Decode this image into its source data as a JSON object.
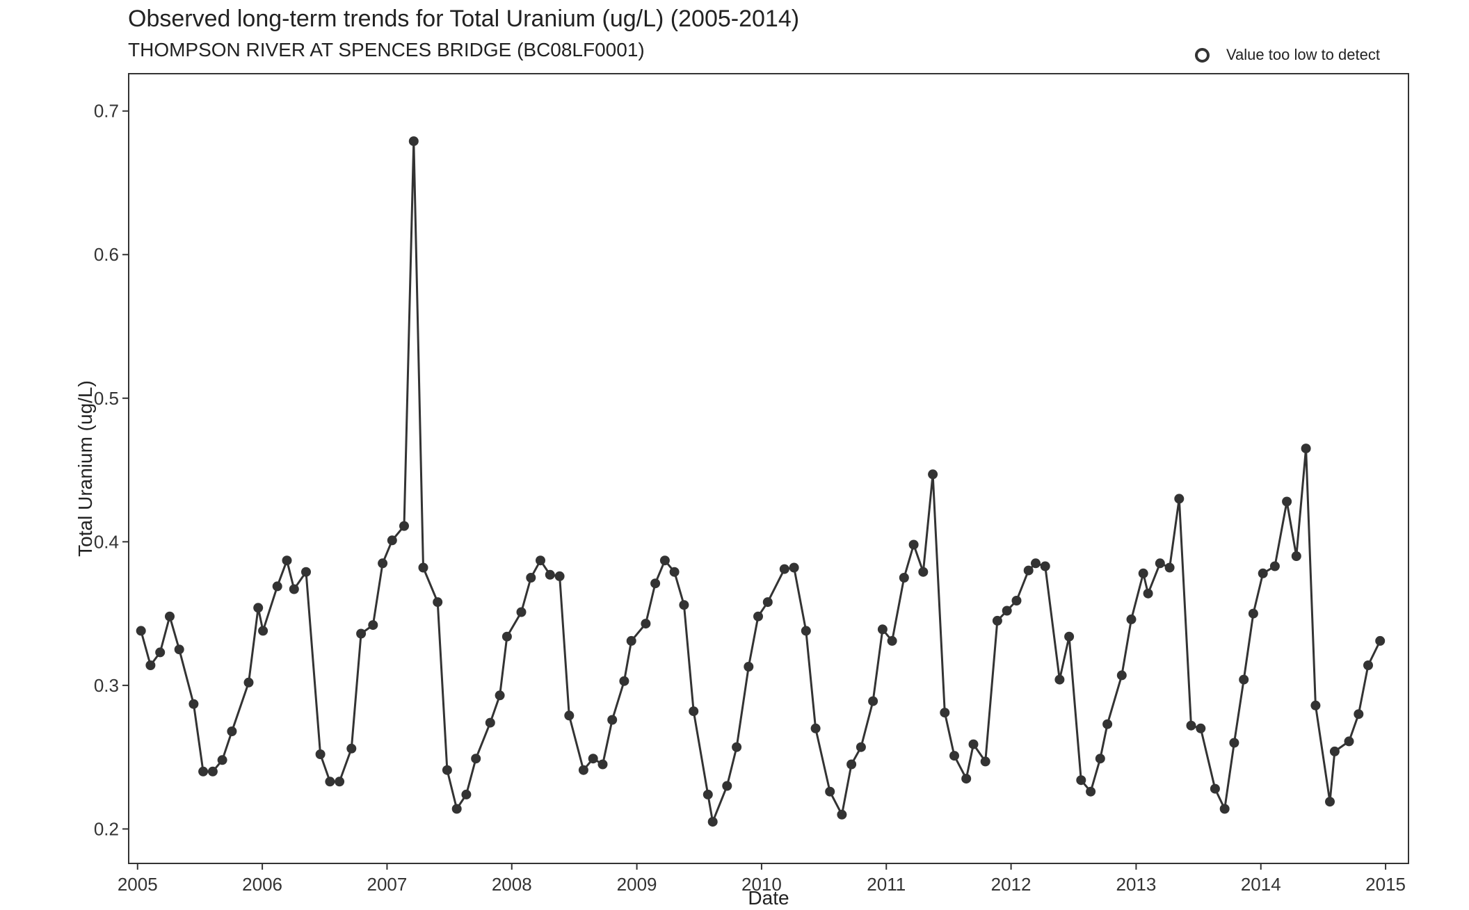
{
  "title": "Observed long-term trends for Total Uranium (ug/L) (2005-2014)",
  "subtitle": "THOMPSON RIVER AT SPENCES BRIDGE (BC08LF0001)",
  "legend": {
    "label": "Value too low to detect",
    "marker": "open-circle"
  },
  "colors": {
    "line": "#333333",
    "point": "#333333",
    "axis": "#333333"
  },
  "chart_data": {
    "type": "line",
    "title": "Observed long-term trends for Total Uranium (ug/L) (2005-2014)",
    "subtitle": "THOMPSON RIVER AT SPENCES BRIDGE (BC08LF0001)",
    "xlabel": "Date",
    "ylabel": "Total Uranium (ug/L)",
    "xlim": [
      "2004-12-06",
      "2015-03-09"
    ],
    "ylim": [
      0.176,
      0.726
    ],
    "x_ticks": [
      "2005",
      "2006",
      "2007",
      "2008",
      "2009",
      "2010",
      "2011",
      "2012",
      "2013",
      "2014",
      "2015"
    ],
    "y_ticks": [
      "0.2",
      "0.3",
      "0.4",
      "0.5",
      "0.6",
      "0.7"
    ],
    "grid": false,
    "legend_position": "top-right",
    "series": [
      {
        "points": [
          [
            "2005-01-11",
            0.338
          ],
          [
            "2005-02-08",
            0.314
          ],
          [
            "2005-03-08",
            0.323
          ],
          [
            "2005-04-05",
            0.348
          ],
          [
            "2005-05-03",
            0.325
          ],
          [
            "2005-06-14",
            0.287
          ],
          [
            "2005-07-12",
            0.24
          ],
          [
            "2005-08-09",
            0.24
          ],
          [
            "2005-09-06",
            0.248
          ],
          [
            "2005-10-04",
            0.268
          ],
          [
            "2005-11-22",
            0.302
          ],
          [
            "2005-12-20",
            0.354
          ],
          [
            "2006-01-03",
            0.338
          ],
          [
            "2006-02-14",
            0.369
          ],
          [
            "2006-03-14",
            0.387
          ],
          [
            "2006-04-04",
            0.367
          ],
          [
            "2006-05-09",
            0.379
          ],
          [
            "2006-06-20",
            0.252
          ],
          [
            "2006-07-18",
            0.233
          ],
          [
            "2006-08-15",
            0.233
          ],
          [
            "2006-09-19",
            0.256
          ],
          [
            "2006-10-17",
            0.336
          ],
          [
            "2006-11-21",
            0.342
          ],
          [
            "2006-12-19",
            0.385
          ],
          [
            "2007-01-16",
            0.401
          ],
          [
            "2007-02-20",
            0.411
          ],
          [
            "2007-03-20",
            0.679
          ],
          [
            "2007-04-17",
            0.382
          ],
          [
            "2007-05-29",
            0.358
          ],
          [
            "2007-06-26",
            0.241
          ],
          [
            "2007-07-24",
            0.214
          ],
          [
            "2007-08-21",
            0.224
          ],
          [
            "2007-09-18",
            0.249
          ],
          [
            "2007-10-30",
            0.274
          ],
          [
            "2007-11-27",
            0.293
          ],
          [
            "2007-12-18",
            0.334
          ],
          [
            "2008-01-29",
            0.351
          ],
          [
            "2008-02-26",
            0.375
          ],
          [
            "2008-03-25",
            0.387
          ],
          [
            "2008-04-22",
            0.377
          ],
          [
            "2008-05-20",
            0.376
          ],
          [
            "2008-06-17",
            0.279
          ],
          [
            "2008-07-29",
            0.241
          ],
          [
            "2008-08-26",
            0.249
          ],
          [
            "2008-09-23",
            0.245
          ],
          [
            "2008-10-21",
            0.276
          ],
          [
            "2008-11-25",
            0.303
          ],
          [
            "2008-12-16",
            0.331
          ],
          [
            "2009-01-27",
            0.343
          ],
          [
            "2009-02-24",
            0.371
          ],
          [
            "2009-03-24",
            0.387
          ],
          [
            "2009-04-21",
            0.379
          ],
          [
            "2009-05-19",
            0.356
          ],
          [
            "2009-06-16",
            0.282
          ],
          [
            "2009-07-28",
            0.224
          ],
          [
            "2009-08-11",
            0.205
          ],
          [
            "2009-09-22",
            0.23
          ],
          [
            "2009-10-20",
            0.257
          ],
          [
            "2009-11-24",
            0.313
          ],
          [
            "2009-12-22",
            0.348
          ],
          [
            "2010-01-19",
            0.358
          ],
          [
            "2010-03-09",
            0.381
          ],
          [
            "2010-04-06",
            0.382
          ],
          [
            "2010-05-11",
            0.338
          ],
          [
            "2010-06-08",
            0.27
          ],
          [
            "2010-07-20",
            0.226
          ],
          [
            "2010-08-24",
            0.21
          ],
          [
            "2010-09-21",
            0.245
          ],
          [
            "2010-10-19",
            0.257
          ],
          [
            "2010-11-23",
            0.289
          ],
          [
            "2010-12-21",
            0.339
          ],
          [
            "2011-01-18",
            0.331
          ],
          [
            "2011-02-22",
            0.375
          ],
          [
            "2011-03-22",
            0.398
          ],
          [
            "2011-04-19",
            0.379
          ],
          [
            "2011-05-17",
            0.447
          ],
          [
            "2011-06-21",
            0.281
          ],
          [
            "2011-07-19",
            0.251
          ],
          [
            "2011-08-23",
            0.235
          ],
          [
            "2011-09-13",
            0.259
          ],
          [
            "2011-10-18",
            0.247
          ],
          [
            "2011-11-22",
            0.345
          ],
          [
            "2011-12-20",
            0.352
          ],
          [
            "2012-01-17",
            0.359
          ],
          [
            "2012-02-21",
            0.38
          ],
          [
            "2012-03-13",
            0.385
          ],
          [
            "2012-04-10",
            0.383
          ],
          [
            "2012-05-22",
            0.304
          ],
          [
            "2012-06-19",
            0.334
          ],
          [
            "2012-07-24",
            0.234
          ],
          [
            "2012-08-21",
            0.226
          ],
          [
            "2012-09-18",
            0.249
          ],
          [
            "2012-10-09",
            0.273
          ],
          [
            "2012-11-20",
            0.307
          ],
          [
            "2012-12-18",
            0.346
          ],
          [
            "2013-01-22",
            0.378
          ],
          [
            "2013-02-05",
            0.364
          ],
          [
            "2013-03-12",
            0.385
          ],
          [
            "2013-04-09",
            0.382
          ],
          [
            "2013-05-07",
            0.43
          ],
          [
            "2013-06-11",
            0.272
          ],
          [
            "2013-07-09",
            0.27
          ],
          [
            "2013-08-20",
            0.228
          ],
          [
            "2013-09-17",
            0.214
          ],
          [
            "2013-10-15",
            0.26
          ],
          [
            "2013-11-12",
            0.304
          ],
          [
            "2013-12-10",
            0.35
          ],
          [
            "2014-01-07",
            0.378
          ],
          [
            "2014-02-11",
            0.383
          ],
          [
            "2014-03-18",
            0.428
          ],
          [
            "2014-04-15",
            0.39
          ],
          [
            "2014-05-13",
            0.465
          ],
          [
            "2014-06-10",
            0.286
          ],
          [
            "2014-07-22",
            0.219
          ],
          [
            "2014-08-05",
            0.254
          ],
          [
            "2014-09-16",
            0.261
          ],
          [
            "2014-10-14",
            0.28
          ],
          [
            "2014-11-11",
            0.314
          ],
          [
            "2014-12-16",
            0.331
          ]
        ],
        "detection_limit_flags": []
      }
    ]
  }
}
